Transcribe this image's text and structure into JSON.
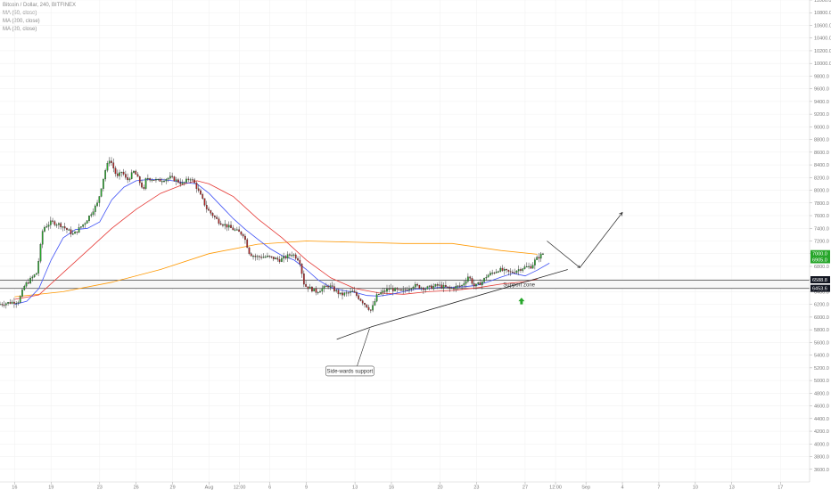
{
  "chart_data": {
    "type": "candlestick",
    "title": "Bitcoin / Dollar, 240, BITFINEX",
    "indicators": [
      "MA (50, close)",
      "MA (200, close)",
      "MA (20, close)"
    ],
    "ylim": [
      3400,
      11000
    ],
    "y_ticks": [
      3600,
      3800,
      4000,
      4200,
      4400,
      4600,
      4800,
      5000,
      5200,
      5400,
      5600,
      5800,
      6000,
      6200,
      6400,
      6600,
      6800,
      7000,
      7200,
      7400,
      7600,
      7800,
      8000,
      8200,
      8400,
      8600,
      8800,
      9000,
      9200,
      9400,
      9600,
      9800,
      10000,
      10200,
      10400,
      10600,
      10800,
      11000
    ],
    "y_tick_labels": [
      "3600.0",
      "3800.0",
      "4000.0",
      "4200.0",
      "4400.0",
      "4600.0",
      "4800.0",
      "5000.0",
      "5200.0",
      "5400.0",
      "5600.0",
      "5800.0",
      "6000.0",
      "6200.0",
      "6400.0",
      "6600.0",
      "6800.0",
      "7000.0",
      "7200.0",
      "7400.0",
      "7600.0",
      "7800.0",
      "8000.0",
      "8200.0",
      "8400.0",
      "8600.0",
      "8800.0",
      "9000.0",
      "9200.0",
      "9400.0",
      "9600.0",
      "9800.0",
      "10000.0",
      "10200.0",
      "10400.0",
      "10600.0",
      "10800.0",
      "11000.0"
    ],
    "x_ticks": [
      {
        "label": "16",
        "day": 0
      },
      {
        "label": "19",
        "day": 3
      },
      {
        "label": "23",
        "day": 7
      },
      {
        "label": "26",
        "day": 10
      },
      {
        "label": "29",
        "day": 13
      },
      {
        "label": "Aug",
        "day": 16
      },
      {
        "label": "12:00",
        "day": 18.5
      },
      {
        "label": "6",
        "day": 21
      },
      {
        "label": "9",
        "day": 24
      },
      {
        "label": "13",
        "day": 28
      },
      {
        "label": "16",
        "day": 31
      },
      {
        "label": "20",
        "day": 35
      },
      {
        "label": "23",
        "day": 38
      },
      {
        "label": "27",
        "day": 42
      },
      {
        "label": "12:00",
        "day": 44.5
      },
      {
        "label": "Sep",
        "day": 47
      },
      {
        "label": "4",
        "day": 50
      },
      {
        "label": "7",
        "day": 53
      },
      {
        "label": "10",
        "day": 56
      },
      {
        "label": "13",
        "day": 59
      },
      {
        "label": "17",
        "day": 63
      }
    ],
    "x_range_days": [
      -1.2,
      65.4
    ],
    "candles_per_day": 6,
    "price_path": [
      [
        -1.2,
        6200
      ],
      [
        0.5,
        6250
      ],
      [
        1,
        6500
      ],
      [
        2,
        6700
      ],
      [
        2.5,
        7400
      ],
      [
        3.2,
        7500
      ],
      [
        4,
        7450
      ],
      [
        5,
        7300
      ],
      [
        6,
        7500
      ],
      [
        7,
        7800
      ],
      [
        7.6,
        8300
      ],
      [
        8,
        8500
      ],
      [
        8.6,
        8200
      ],
      [
        9,
        8300
      ],
      [
        9.4,
        8150
      ],
      [
        10,
        8300
      ],
      [
        10.8,
        8000
      ],
      [
        11,
        8200
      ],
      [
        12,
        8150
      ],
      [
        13,
        8200
      ],
      [
        14,
        8100
      ],
      [
        14.6,
        8200
      ],
      [
        15,
        8100
      ],
      [
        15.5,
        7900
      ],
      [
        16,
        7700
      ],
      [
        17,
        7500
      ],
      [
        18,
        7400
      ],
      [
        19,
        7300
      ],
      [
        19.5,
        7000
      ],
      [
        20,
        6950
      ],
      [
        21,
        6950
      ],
      [
        22,
        6900
      ],
      [
        23,
        7000
      ],
      [
        23.6,
        6900
      ],
      [
        24,
        6500
      ],
      [
        25,
        6400
      ],
      [
        26,
        6500
      ],
      [
        27,
        6350
      ],
      [
        28,
        6400
      ],
      [
        29,
        6200
      ],
      [
        29.5,
        6100
      ],
      [
        30,
        6350
      ],
      [
        31,
        6450
      ],
      [
        32,
        6400
      ],
      [
        33,
        6500
      ],
      [
        34,
        6450
      ],
      [
        35,
        6500
      ],
      [
        36,
        6450
      ],
      [
        37,
        6500
      ],
      [
        37.5,
        6650
      ],
      [
        38,
        6480
      ],
      [
        38.6,
        6550
      ],
      [
        39,
        6650
      ],
      [
        40,
        6750
      ],
      [
        41,
        6700
      ],
      [
        42,
        6780
      ],
      [
        42.7,
        6800
      ],
      [
        43,
        6900
      ],
      [
        43.6,
        7000
      ]
    ],
    "ma_20": [
      [
        0,
        6200
      ],
      [
        1,
        6250
      ],
      [
        2,
        6450
      ],
      [
        3,
        6900
      ],
      [
        4,
        7250
      ],
      [
        5,
        7380
      ],
      [
        6,
        7400
      ],
      [
        7,
        7500
      ],
      [
        8,
        7850
      ],
      [
        9,
        8050
      ],
      [
        10,
        8150
      ],
      [
        11,
        8170
      ],
      [
        12,
        8170
      ],
      [
        13,
        8150
      ],
      [
        14,
        8120
      ],
      [
        15,
        8100
      ],
      [
        16,
        7950
      ],
      [
        17,
        7750
      ],
      [
        18,
        7550
      ],
      [
        19,
        7380
      ],
      [
        20,
        7230
      ],
      [
        21,
        7080
      ],
      [
        22,
        6970
      ],
      [
        23,
        6900
      ],
      [
        24,
        6750
      ],
      [
        25,
        6580
      ],
      [
        26,
        6470
      ],
      [
        27,
        6420
      ],
      [
        28,
        6390
      ],
      [
        29,
        6340
      ],
      [
        30,
        6330
      ],
      [
        31,
        6360
      ],
      [
        32,
        6400
      ],
      [
        33,
        6440
      ],
      [
        34,
        6450
      ],
      [
        35,
        6470
      ],
      [
        36,
        6470
      ],
      [
        37,
        6480
      ],
      [
        38,
        6500
      ],
      [
        39,
        6560
      ],
      [
        40,
        6630
      ],
      [
        41,
        6690
      ],
      [
        42,
        6650
      ],
      [
        43,
        6740
      ],
      [
        44,
        6850
      ]
    ],
    "ma_50": [
      [
        0,
        6280
      ],
      [
        2,
        6350
      ],
      [
        4,
        6700
      ],
      [
        6,
        7050
      ],
      [
        8,
        7400
      ],
      [
        10,
        7700
      ],
      [
        12,
        7950
      ],
      [
        14,
        8100
      ],
      [
        15,
        8150
      ],
      [
        16,
        8100
      ],
      [
        18,
        7900
      ],
      [
        20,
        7550
      ],
      [
        22,
        7250
      ],
      [
        24,
        6900
      ],
      [
        26,
        6620
      ],
      [
        28,
        6450
      ],
      [
        30,
        6380
      ],
      [
        32,
        6360
      ],
      [
        34,
        6400
      ],
      [
        36,
        6420
      ],
      [
        38,
        6460
      ],
      [
        40,
        6520
      ],
      [
        42,
        6560
      ],
      [
        43,
        6600
      ]
    ],
    "ma_200": [
      [
        0,
        6320
      ],
      [
        4,
        6400
      ],
      [
        8,
        6550
      ],
      [
        12,
        6750
      ],
      [
        16,
        7000
      ],
      [
        20,
        7150
      ],
      [
        24,
        7200
      ],
      [
        28,
        7180
      ],
      [
        32,
        7160
      ],
      [
        36,
        7160
      ],
      [
        40,
        7050
      ],
      [
        43,
        6990
      ]
    ],
    "support_zone": {
      "low": 6452.0,
      "high": 6580.0,
      "label": "Support zone"
    },
    "price_tags": [
      {
        "value": 6588.8,
        "label": "6588.8",
        "color": "#131722"
      },
      {
        "value": 6453.6,
        "label": "6453.6",
        "color": "#131722"
      },
      {
        "value": 7000.0,
        "label": "7000.0",
        "color": "#26a62a"
      },
      {
        "value": 6905.0,
        "label": "6905.0",
        "color": "#26a62a"
      }
    ],
    "trendline": {
      "from": [
        29.4,
        5850
      ],
      "to": [
        45.5,
        6750
      ]
    },
    "trendline_ext": {
      "from": [
        26.5,
        5650
      ],
      "to": [
        29.4,
        5850
      ]
    },
    "projection": [
      [
        43.8,
        7200
      ],
      [
        46.5,
        6780
      ],
      [
        50.0,
        7650
      ]
    ],
    "annotation": {
      "text": "Side-wards support",
      "point_to": [
        29.2,
        5820
      ],
      "box_at": [
        25.6,
        5150
      ]
    },
    "arrow_marker": {
      "day": 41.7,
      "value": 6250,
      "color": "#26a62a"
    },
    "colors": {
      "up": "#26a62a",
      "down": "#b22222",
      "ma20": "#3f51f5",
      "ma50": "#e53935",
      "ma200": "#ff9800"
    }
  }
}
